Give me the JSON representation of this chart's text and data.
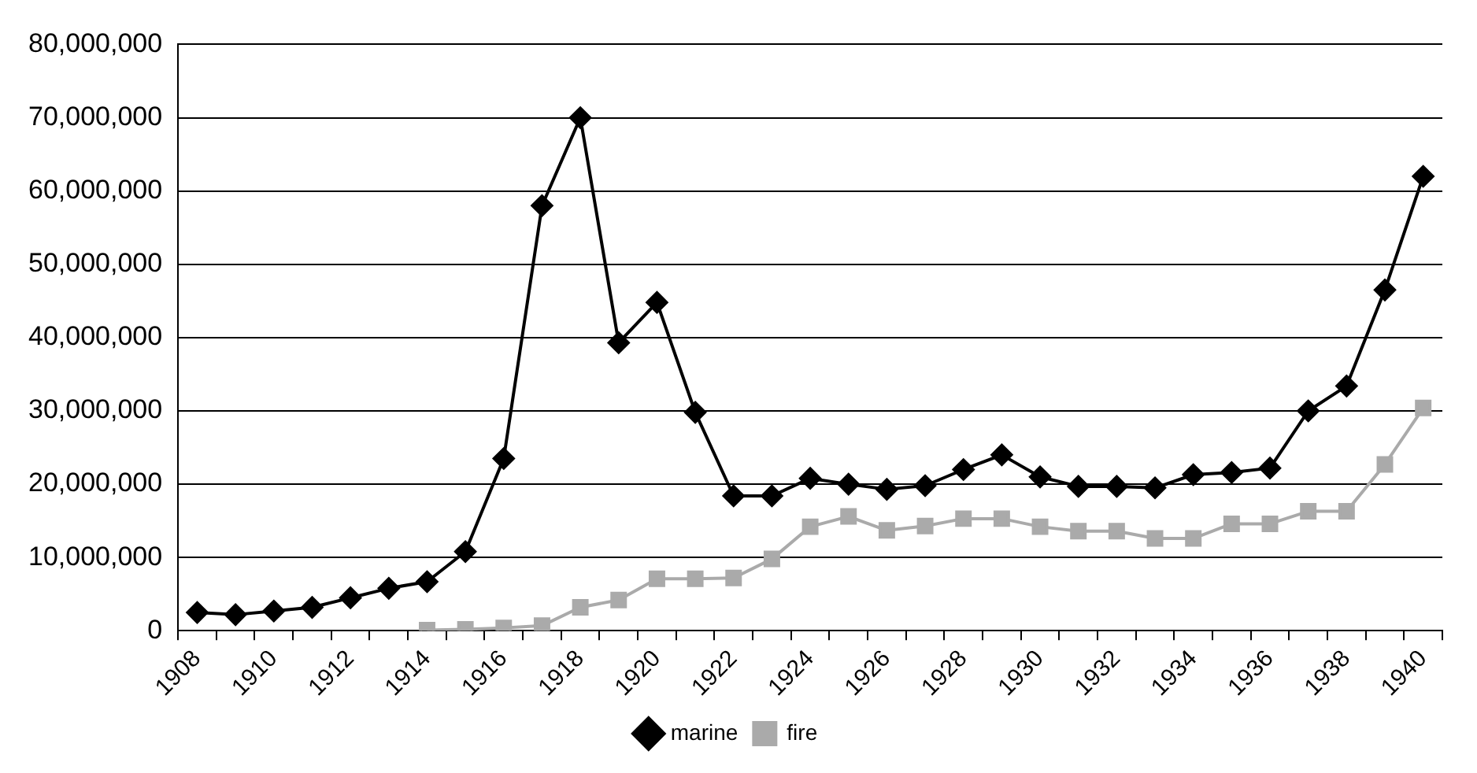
{
  "chart_data": {
    "type": "line",
    "categories": [
      "1908",
      null,
      "1910",
      null,
      "1912",
      null,
      "1914",
      null,
      "1916",
      null,
      "1918",
      null,
      "1920",
      null,
      "1922",
      null,
      "1924",
      null,
      "1926",
      null,
      "1928",
      null,
      "1930",
      null,
      "1932",
      null,
      "1934",
      null,
      "1936",
      null,
      "1938",
      null,
      "1940"
    ],
    "series": [
      {
        "name": "marine",
        "color": "#000000",
        "marker": "diamond",
        "values": [
          2500000,
          2200000,
          2700000,
          3200000,
          4500000,
          5800000,
          6700000,
          10800000,
          23500000,
          58000000,
          70000000,
          39300000,
          44800000,
          29800000,
          18400000,
          18400000,
          20800000,
          20000000,
          19300000,
          19800000,
          22000000,
          24000000,
          21000000,
          19700000,
          19700000,
          19500000,
          21300000,
          21600000,
          22200000,
          30000000,
          33400000,
          46500000,
          62000000
        ]
      },
      {
        "name": "fire",
        "color": "#aaaaaa",
        "marker": "square",
        "values": [
          null,
          null,
          null,
          null,
          null,
          null,
          100000,
          200000,
          400000,
          700000,
          3200000,
          4200000,
          7100000,
          7100000,
          7200000,
          9800000,
          14200000,
          15600000,
          13700000,
          14300000,
          15300000,
          15300000,
          14200000,
          13600000,
          13600000,
          12600000,
          12600000,
          14600000,
          14600000,
          16300000,
          16300000,
          22700000,
          30400000
        ]
      }
    ],
    "ylim": [
      0,
      80000000
    ],
    "yticks": [
      {
        "value": 0,
        "label": "0"
      },
      {
        "value": 10000000,
        "label": "10,000,000"
      },
      {
        "value": 20000000,
        "label": "20,000,000"
      },
      {
        "value": 30000000,
        "label": "30,000,000"
      },
      {
        "value": 40000000,
        "label": "40,000,000"
      },
      {
        "value": 50000000,
        "label": "50,000,000"
      },
      {
        "value": 60000000,
        "label": "60,000,000"
      },
      {
        "value": 70000000,
        "label": "70,000,000"
      },
      {
        "value": 80000000,
        "label": "80,000,000"
      }
    ],
    "grid": "y",
    "legend": "bottom",
    "line_style": "solid"
  }
}
